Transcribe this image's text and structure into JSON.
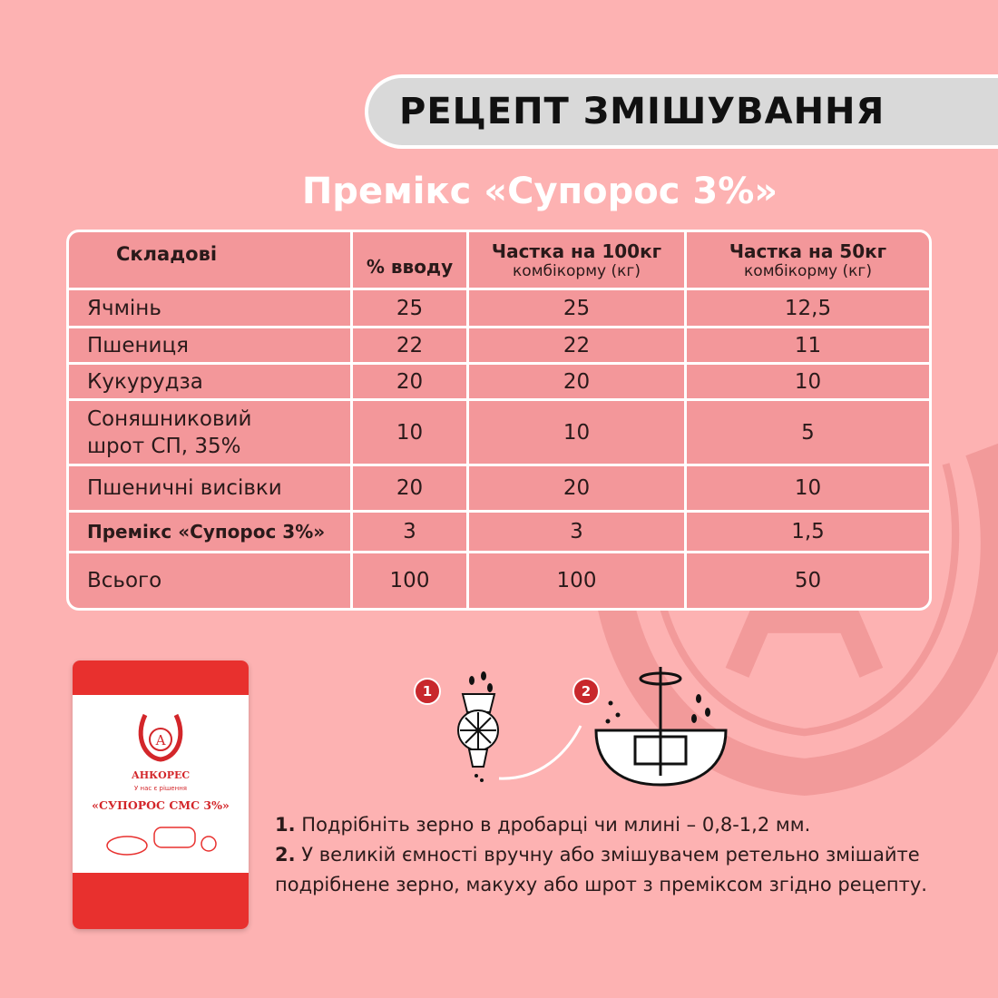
{
  "header": {
    "title": "РЕЦЕПТ ЗМІШУВАННЯ",
    "subtitle": "Премікс «Супорос 3%»"
  },
  "table": {
    "headers": [
      {
        "main": "Складові",
        "sub": ""
      },
      {
        "main": "% вводу",
        "sub": ""
      },
      {
        "main": "Частка на 100кг",
        "sub": "комбікорму (кг)"
      },
      {
        "main": "Частка на 50кг",
        "sub": "комбікорму (кг)"
      }
    ],
    "rows": [
      [
        "Ячмінь",
        "25",
        "25",
        "12,5"
      ],
      [
        "Пшениця",
        "22",
        "22",
        "11"
      ],
      [
        "Кукурудза",
        "20",
        "20",
        "10"
      ],
      [
        "Соняшниковий шрот СП, 35%",
        "10",
        "10",
        "5"
      ],
      [
        "Пшеничні висівки",
        "20",
        "20",
        "10"
      ],
      [
        "Премікс «Супорос 3%»",
        "3",
        "3",
        "1,5"
      ],
      [
        "Всього",
        "100",
        "100",
        "50"
      ]
    ]
  },
  "product": {
    "brand": "АНКОРЕС",
    "slogan": "У нас є рішення",
    "name": "«СУПОРОС СМС 3%»",
    "logo_letter": "А"
  },
  "steps": {
    "badges": [
      "1",
      "2"
    ],
    "items": [
      {
        "num": "1.",
        "text": "Подрібніть зерно в дробарці чи млині – 0,8-1,2 мм."
      },
      {
        "num": "2.",
        "text": "У великій ємності вручну або змішувачем ретельно змішайте подрібнене зерно, макуху або шрот з преміксом згідно рецепту."
      }
    ]
  },
  "colors": {
    "background": "#FDB2B2",
    "table": "#F3979A",
    "accent": "#C8282C",
    "pill": "#D9D9D9"
  }
}
